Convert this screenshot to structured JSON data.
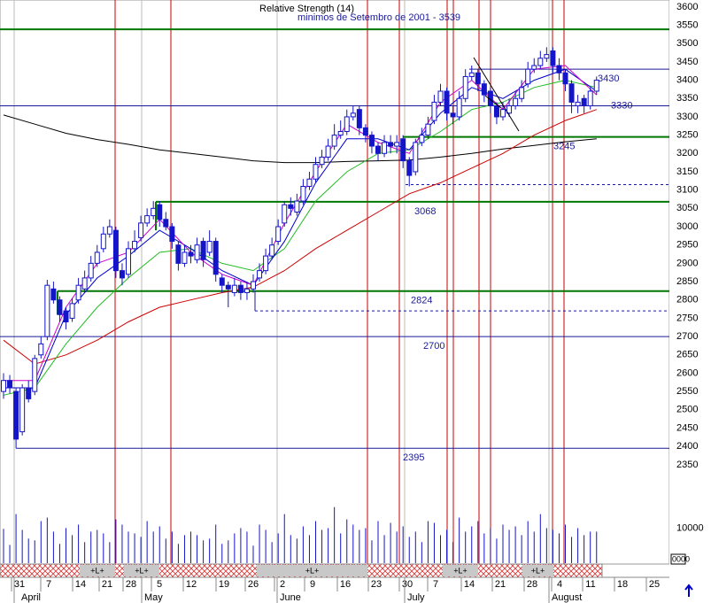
{
  "chart_data": {
    "type": "candlestick",
    "title": "Relative Strength (14)",
    "subtitle": "minimos de Setembro de 2001 - 3539",
    "x_labels": [
      "31",
      "7",
      "14",
      "21",
      "28",
      "5",
      "12",
      "19",
      "26",
      "2",
      "9",
      "16",
      "23",
      "30",
      "7",
      "14",
      "21",
      "28",
      "4",
      "11",
      "18",
      "25"
    ],
    "month_labels": [
      "April",
      "May",
      "June",
      "July",
      "August"
    ],
    "open": [
      2550,
      2580,
      2550,
      2440,
      2560,
      2550,
      2650,
      2700,
      2830,
      2800,
      2770,
      2750,
      2800,
      2830,
      2860,
      2900,
      2940,
      2980,
      2990,
      2880,
      2870,
      2940,
      2970,
      3010,
      3030,
      3060,
      3020,
      3000,
      2950,
      2900,
      2930,
      2910,
      2960,
      2930,
      2960,
      2860,
      2840,
      2820,
      2840,
      2820,
      2830,
      2860,
      2880,
      2920,
      2960,
      3010,
      3060,
      3040,
      3070,
      3110,
      3130,
      3170,
      3190,
      3220,
      3250,
      3260,
      3300,
      3320,
      3270,
      3250,
      3220,
      3200,
      3230,
      3220,
      3240,
      3180,
      3150,
      3230,
      3250,
      3290,
      3340,
      3370,
      3310,
      3300,
      3350,
      3410,
      3420,
      3390,
      3370,
      3330,
      3300,
      3310,
      3330,
      3350,
      3390,
      3430,
      3440,
      3460,
      3480,
      3440,
      3420,
      3390,
      3330,
      3350,
      3330,
      3370
    ],
    "high": [
      2600,
      2595,
      2560,
      2570,
      2580,
      2650,
      2700,
      2855,
      2850,
      2810,
      2780,
      2805,
      2860,
      2880,
      2920,
      2950,
      3000,
      3020,
      3000,
      2900,
      2960,
      2990,
      3030,
      3050,
      3070,
      3070,
      3040,
      3010,
      2960,
      2950,
      2950,
      2970,
      2970,
      2990,
      2970,
      2870,
      2850,
      2860,
      2850,
      2850,
      2870,
      2900,
      2940,
      2970,
      3020,
      3070,
      3080,
      3090,
      3130,
      3150,
      3190,
      3210,
      3240,
      3280,
      3290,
      3320,
      3330,
      3330,
      3280,
      3260,
      3230,
      3250,
      3250,
      3250,
      3250,
      3190,
      3240,
      3270,
      3300,
      3360,
      3390,
      3380,
      3330,
      3370,
      3430,
      3440,
      3430,
      3400,
      3380,
      3340,
      3340,
      3350,
      3370,
      3400,
      3450,
      3460,
      3480,
      3490,
      3490,
      3460,
      3430,
      3400,
      3360,
      3360,
      3380,
      3410
    ],
    "low": [
      2530,
      2545,
      2395,
      2430,
      2520,
      2540,
      2640,
      2690,
      2790,
      2740,
      2720,
      2740,
      2790,
      2820,
      2850,
      2890,
      2930,
      2970,
      2860,
      2840,
      2860,
      2930,
      2960,
      3000,
      3020,
      3000,
      2990,
      2940,
      2880,
      2890,
      2900,
      2900,
      2890,
      2920,
      2850,
      2820,
      2780,
      2810,
      2800,
      2800,
      2820,
      2850,
      2870,
      2910,
      2950,
      3000,
      3030,
      3030,
      3060,
      3100,
      3120,
      3160,
      3180,
      3210,
      3240,
      3250,
      3290,
      3250,
      3230,
      3200,
      3180,
      3190,
      3200,
      3200,
      3160,
      3110,
      3140,
      3220,
      3240,
      3280,
      3330,
      3290,
      3280,
      3290,
      3340,
      3400,
      3370,
      3340,
      3310,
      3280,
      3290,
      3300,
      3320,
      3340,
      3380,
      3420,
      3430,
      3450,
      3420,
      3400,
      3370,
      3310,
      3310,
      3310,
      3320,
      3360
    ],
    "close": [
      2580,
      2560,
      2420,
      2560,
      2530,
      2640,
      2680,
      2840,
      2800,
      2760,
      2740,
      2790,
      2840,
      2860,
      2900,
      2930,
      2980,
      3000,
      2880,
      2860,
      2940,
      2960,
      3010,
      3030,
      3050,
      3020,
      3000,
      2960,
      2900,
      2930,
      2920,
      2950,
      2910,
      2960,
      2870,
      2840,
      2830,
      2840,
      2820,
      2830,
      2850,
      2880,
      2920,
      2950,
      3000,
      3060,
      3050,
      3070,
      3110,
      3130,
      3170,
      3190,
      3220,
      3250,
      3260,
      3300,
      3310,
      3270,
      3250,
      3220,
      3200,
      3230,
      3220,
      3230,
      3180,
      3140,
      3230,
      3250,
      3280,
      3340,
      3370,
      3310,
      3300,
      3350,
      3410,
      3420,
      3390,
      3360,
      3330,
      3300,
      3320,
      3330,
      3350,
      3380,
      3430,
      3440,
      3460,
      3470,
      3440,
      3420,
      3390,
      3340,
      3340,
      3330,
      3370,
      3400
    ],
    "candle_color": "#1414c8",
    "ylim": [
      2265,
      3619
    ],
    "yticks": [
      2350,
      2400,
      2450,
      2500,
      2550,
      2600,
      2650,
      2700,
      2750,
      2800,
      2850,
      2900,
      2950,
      3000,
      3050,
      3100,
      3150,
      3200,
      3250,
      3300,
      3350,
      3400,
      3450,
      3500,
      3550,
      3600
    ],
    "moving_averages": {
      "x": [
        0,
        5,
        10,
        15,
        20,
        25,
        30,
        35,
        40,
        45,
        50,
        55,
        60,
        65,
        70,
        75,
        80,
        85,
        90,
        95
      ],
      "series": [
        {
          "color": "#000000",
          "values": [
            3305,
            3280,
            3255,
            3238,
            3225,
            3210,
            3200,
            3190,
            3180,
            3175,
            3175,
            3178,
            3180,
            3182,
            3190,
            3200,
            3212,
            3222,
            3232,
            3240
          ]
        },
        {
          "color": "#cc0000",
          "values": [
            2690,
            2625,
            2650,
            2690,
            2740,
            2780,
            2800,
            2820,
            2835,
            2880,
            2940,
            2990,
            3040,
            3090,
            3120,
            3160,
            3200,
            3250,
            3290,
            3320
          ]
        },
        {
          "color": "#22bb22",
          "values": [
            2540,
            2560,
            2680,
            2780,
            2860,
            2930,
            2940,
            2900,
            2880,
            2940,
            3070,
            3150,
            3200,
            3210,
            3260,
            3320,
            3340,
            3380,
            3400,
            3380
          ]
        },
        {
          "color": "#0000cc",
          "values": [
            2560,
            2560,
            2760,
            2860,
            2920,
            2990,
            2940,
            2880,
            2840,
            2960,
            3120,
            3240,
            3240,
            3210,
            3310,
            3380,
            3350,
            3400,
            3430,
            3370
          ]
        },
        {
          "color": "#cc00cc",
          "values": [
            2580,
            2580,
            2780,
            2900,
            2930,
            3020,
            2930,
            2870,
            2840,
            3010,
            3150,
            3280,
            3230,
            3200,
            3340,
            3400,
            3320,
            3430,
            3440,
            3360
          ]
        }
      ]
    },
    "levels": [
      {
        "value": 3539,
        "color": "#007700",
        "labeled": false
      },
      {
        "value": 3430,
        "color": "#1a1a99",
        "labeled": true
      },
      {
        "value": 3330,
        "color": "#1a1a99",
        "labeled": true
      },
      {
        "value": 3245,
        "color": "#007700",
        "labeled": true
      },
      {
        "value": 3115,
        "color": "#1a1a99",
        "labeled": false,
        "dashed": true
      },
      {
        "value": 3068,
        "color": "#007700",
        "labeled": true
      },
      {
        "value": 2824,
        "color": "#007700",
        "labeled": true
      },
      {
        "value": 2770,
        "color": "#1a1a99",
        "labeled": false,
        "dashed": true
      },
      {
        "value": 2700,
        "color": "#1a1a99",
        "labeled": true
      },
      {
        "value": 2395,
        "color": "#1a1a99",
        "labeled": true
      }
    ],
    "volume": {
      "color": "#1414c8",
      "ylim": [
        0,
        19200
      ],
      "yticks": [
        10000
      ],
      "values": [
        9800,
        5200,
        14000,
        9500,
        7000,
        6500,
        12000,
        13000,
        9000,
        5500,
        10000,
        8000,
        11000,
        6000,
        9000,
        9500,
        8500,
        6000,
        12500,
        11000,
        9000,
        8500,
        7500,
        12000,
        9000,
        10500,
        7000,
        9000,
        5500,
        8000,
        9000,
        8000,
        6500,
        7000,
        11000,
        5500,
        6500,
        8500,
        10000,
        9000,
        5000,
        11000,
        9500,
        6000,
        8500,
        14000,
        8000,
        7000,
        10500,
        8000,
        12000,
        9500,
        10000,
        16000,
        8500,
        12500,
        11000,
        9500,
        10000,
        6500,
        12000,
        8000,
        11500,
        9000,
        10500,
        7500,
        9000,
        6000,
        12000,
        11500,
        8000,
        9500,
        6000,
        13000,
        9000,
        10500,
        12000,
        8500,
        10000,
        7000,
        11000,
        9500,
        10500,
        8000,
        12000,
        9000,
        14000,
        10000,
        9500,
        8500,
        11000,
        7500,
        10000,
        8000,
        9000,
        9000
      ]
    },
    "strip_labels": [
      "+L+",
      "+L+",
      "+L+",
      "+L+",
      "+L+"
    ],
    "indicator": "0000"
  }
}
